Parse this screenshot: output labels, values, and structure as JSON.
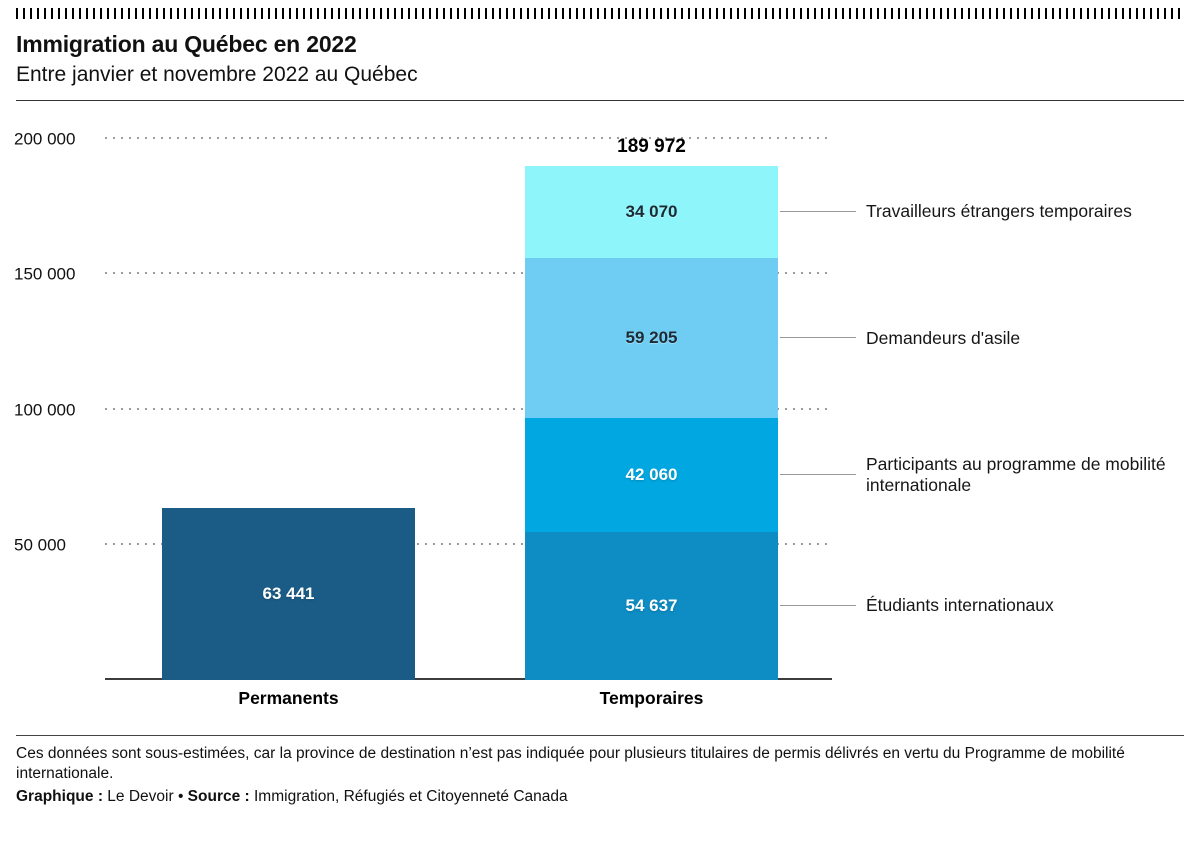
{
  "header": {
    "title": "Immigration au Québec en 2022",
    "subtitle": "Entre janvier et novembre 2022 au Québec"
  },
  "footer": {
    "note": "Ces données sont sous-estimées, car la province de destination n’est pas indiquée pour plusieurs titulaires de permis délivrés en vertu du Programme de mobilité internationale.",
    "credit_label": "Graphique :",
    "credit_value": " Le Devoir ",
    "separator": "• ",
    "source_label": "Source :",
    "source_value": " Immigration, Réfugiés et Citoyenneté Canada"
  },
  "chart_data": {
    "type": "bar",
    "stacked": true,
    "title": "Immigration au Québec en 2022",
    "subtitle": "Entre janvier et novembre 2022 au Québec",
    "ylim": [
      0,
      200000
    ],
    "grid": "dotted-horizontal",
    "yticks": [
      {
        "value": 200000,
        "label": "200 000"
      },
      {
        "value": 150000,
        "label": "150 000"
      },
      {
        "value": 100000,
        "label": "100 000"
      },
      {
        "value": 50000,
        "label": "50 000"
      }
    ],
    "bars": [
      {
        "category": "Permanents",
        "total": 63441,
        "total_label": null,
        "segments": [
          {
            "name": "Permanents",
            "value": 63441,
            "value_label": "63 441",
            "color": "#1b5c87",
            "text_color": "#ffffff",
            "annotation": null
          }
        ]
      },
      {
        "category": "Temporaires",
        "total": 189972,
        "total_label": "189 972",
        "segments": [
          {
            "name": "Étudiants internationaux",
            "value": 54637,
            "value_label": "54 637",
            "color": "#0d8dc4",
            "text_color": "#ffffff",
            "annotation": "Étudiants internationaux"
          },
          {
            "name": "Participants au programme de mobilité internationale",
            "value": 42060,
            "value_label": "42 060",
            "color": "#00a7e1",
            "text_color": "#ffffff",
            "annotation": "Participants au programme de mobilité internationale"
          },
          {
            "name": "Demandeurs d'asile",
            "value": 59205,
            "value_label": "59 205",
            "color": "#6fcdf4",
            "text_color": "#1c2b33",
            "annotation": "Demandeurs d'asile"
          },
          {
            "name": "Travailleurs étrangers temporaires",
            "value": 34070,
            "value_label": "34 070",
            "color": "#8ef6fb",
            "text_color": "#1c2b33",
            "annotation": "Travailleurs étrangers temporaires"
          }
        ]
      }
    ]
  }
}
